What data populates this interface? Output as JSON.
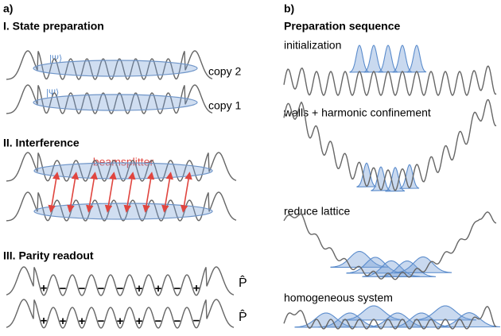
{
  "panel_a": {
    "label": "a)",
    "state_preparation": {
      "title": "I. State preparation",
      "psi": [
        "|Ψ⟩",
        "|Ψ⟩"
      ],
      "copies": [
        "copy 2",
        "copy 1"
      ]
    },
    "interference": {
      "title": "II. Interference",
      "beamsplitter": "beamsplitter"
    },
    "parity_readout": {
      "title": "III. Parity readout",
      "rows": [
        [
          "+",
          "−",
          "−",
          "−",
          "−",
          "+",
          "+",
          "−",
          "+"
        ],
        [
          "+",
          "+",
          "+",
          "−",
          "+",
          "+",
          "−",
          "−",
          "−"
        ]
      ],
      "operator": [
        "P̂",
        "P̂"
      ]
    }
  },
  "panel_b": {
    "label": "b)",
    "title": "Preparation sequence",
    "steps": [
      "initialization",
      "walls + harmonic confinement",
      "reduce lattice",
      "homogeneous system"
    ]
  }
}
